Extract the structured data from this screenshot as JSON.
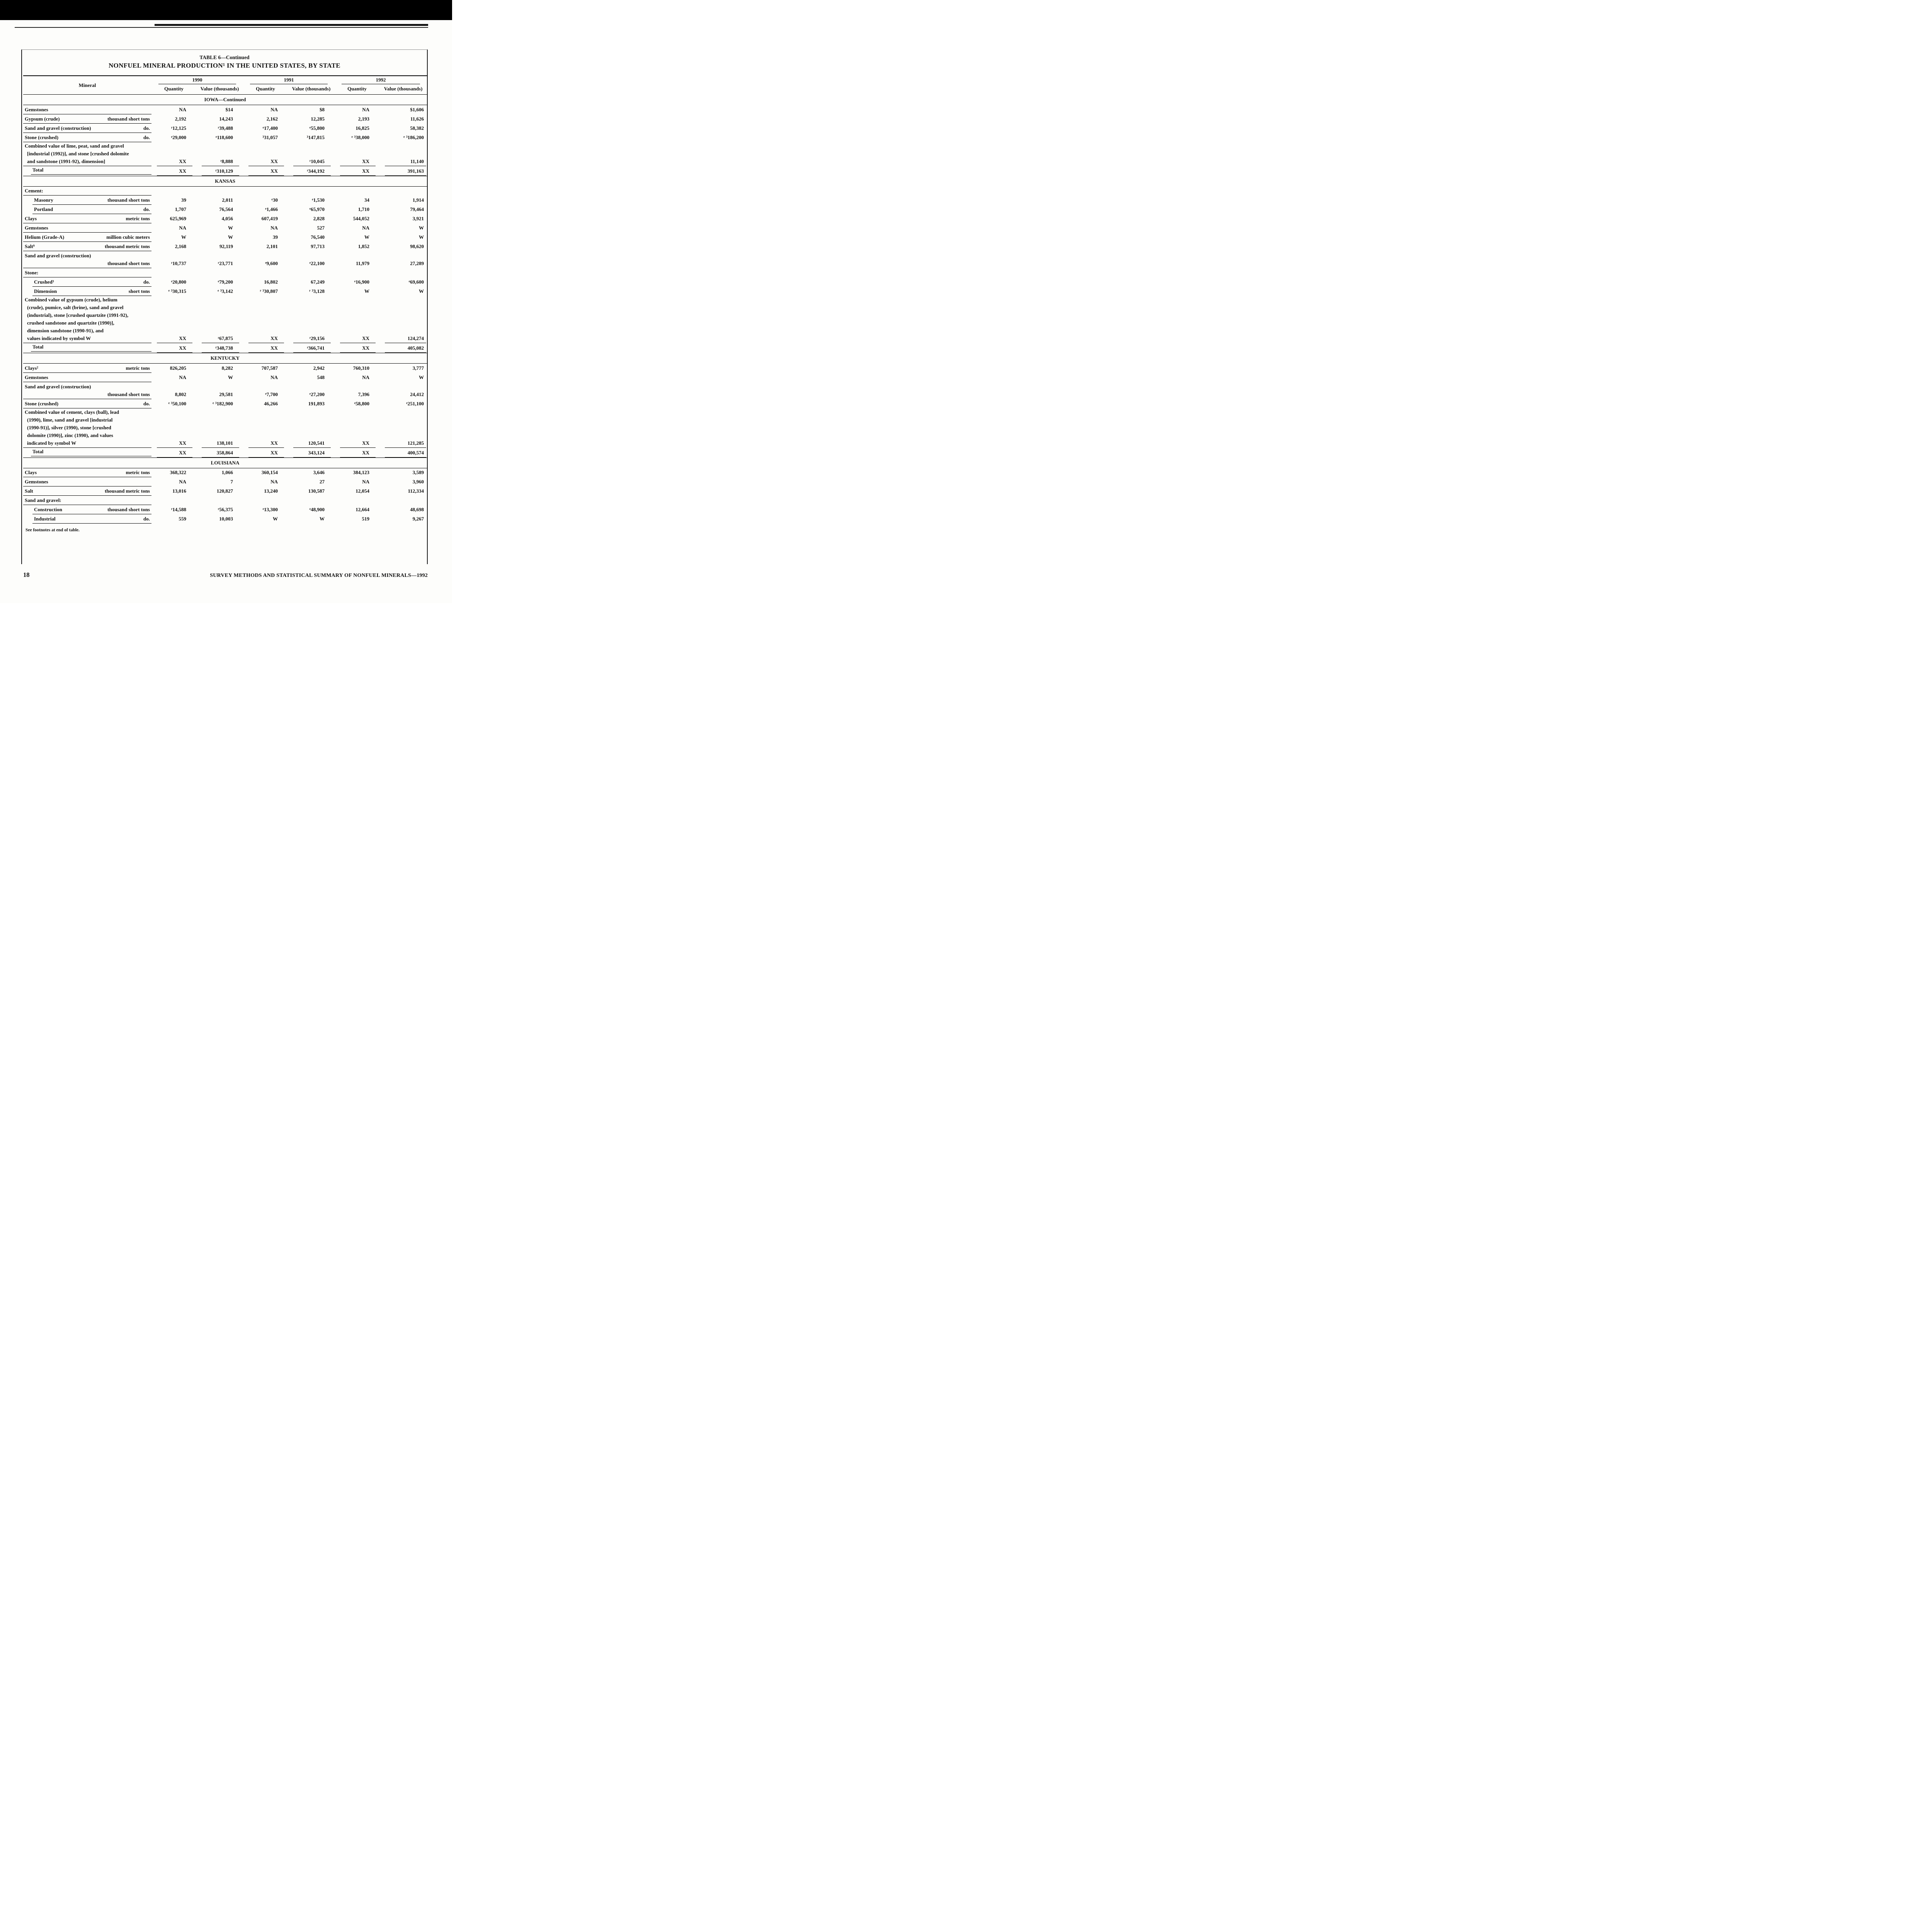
{
  "colors": {
    "ink": "#111111",
    "paper": "#fdfdfb",
    "bar": "#000000"
  },
  "doc": {
    "page_number": "18",
    "footer_text": "SURVEY METHODS AND STATISTICAL SUMMARY OF NONFUEL MINERALS—1992"
  },
  "table": {
    "title_line1": "TABLE 6—Continued",
    "title_line2": "NONFUEL MINERAL PRODUCTION¹ IN THE UNITED STATES, BY STATE",
    "mineral_header": "Mineral",
    "years": [
      "1990",
      "1991",
      "1992"
    ],
    "quantity_header": "Quantity",
    "value_header": "Value (thousands)",
    "rows": [
      {
        "t": "sec",
        "label": "IOWA—Continued"
      },
      {
        "t": "r",
        "label": "Gemstones",
        "unit": "",
        "v": [
          "NA",
          "$14",
          "NA",
          "$8",
          "NA",
          "$1,606"
        ]
      },
      {
        "t": "r",
        "label": "Gypsum (crude)",
        "unit": "thousand short tons",
        "v": [
          "2,192",
          "14,243",
          "2,162",
          "12,285",
          "2,193",
          "11,626"
        ]
      },
      {
        "t": "r",
        "label": "Sand and gravel (construction)",
        "unit": "do.",
        "v": [
          "ʳ12,125",
          "ʳ39,488",
          "ᵉ17,400",
          "ᵉ55,800",
          "16,825",
          "58,382"
        ]
      },
      {
        "t": "r",
        "label": "Stone (crushed)",
        "unit": "do.",
        "v": [
          "ᵉ29,000",
          "ᵉ118,600",
          "³31,057",
          "³147,815",
          "ᵉ ³38,000",
          "ᵉ ³186,200"
        ]
      },
      {
        "t": "ml",
        "lines": [
          "Combined value of lime, peat, sand and gravel",
          "[industrial (1992)], and stone [crushed dolomite",
          "and sandstone (1991-92), dimension]"
        ],
        "v": [
          "XX",
          "ʳ8,888",
          "XX",
          "ʳ10,045",
          "XX",
          "11,140"
        ]
      },
      {
        "t": "total",
        "label": "Total",
        "v": [
          "XX",
          "ʳ310,129",
          "XX",
          "ʳ344,192",
          "XX",
          "391,163"
        ]
      },
      {
        "t": "sec",
        "label": "KANSAS"
      },
      {
        "t": "g",
        "label": "Cement:"
      },
      {
        "t": "r",
        "label": "Masonry",
        "unit": "thousand short tons",
        "ind": 1,
        "v": [
          "39",
          "2,011",
          "ᵉ30",
          "ᵉ1,530",
          "34",
          "1,914"
        ]
      },
      {
        "t": "r",
        "label": "Portland",
        "unit": "do.",
        "ind": 1,
        "v": [
          "1,707",
          "76,564",
          "ᵉ1,466",
          "ᵉ65,970",
          "1,710",
          "79,464"
        ]
      },
      {
        "t": "r",
        "label": "Clays",
        "unit": "metric tons",
        "v": [
          "625,969",
          "4,056",
          "607,419",
          "2,828",
          "544,052",
          "3,921"
        ]
      },
      {
        "t": "r",
        "label": "Gemstones",
        "unit": "",
        "v": [
          "NA",
          "W",
          "NA",
          "527",
          "NA",
          "W"
        ]
      },
      {
        "t": "r",
        "label": "Helium (Grade-A)",
        "unit": "million cubic meters",
        "v": [
          "W",
          "W",
          "39",
          "76,540",
          "W",
          "W"
        ]
      },
      {
        "t": "r",
        "label": "Salt⁹",
        "unit": "thousand metric tons",
        "v": [
          "2,168",
          "92,119",
          "2,101",
          "97,713",
          "1,852",
          "98,620"
        ]
      },
      {
        "t": "r2",
        "label": "Sand and gravel (construction)",
        "unit": "thousand short tons",
        "v": [
          "ʳ10,737",
          "ʳ23,771",
          "ᵉ9,600",
          "ᵉ22,100",
          "11,979",
          "27,289"
        ]
      },
      {
        "t": "g",
        "label": "Stone:"
      },
      {
        "t": "r",
        "label": "Crushed³",
        "unit": "do.",
        "ind": 1,
        "v": [
          "ᵉ20,800",
          "ᵉ79,200",
          "16,802",
          "67,249",
          "ᵉ16,900",
          "ᵉ69,600"
        ]
      },
      {
        "t": "r",
        "label": "Dimension",
        "unit": "short tons",
        "ind": 1,
        "v": [
          "ᵉ ³30,315",
          "ᵉ ³3,142",
          "ʳ ³30,807",
          "ʳ ³3,128",
          "W",
          "W"
        ]
      },
      {
        "t": "ml",
        "lines": [
          "Combined value of gypsum (crude), helium",
          "(crude), pumice, salt (brine), sand and gravel",
          "(industrial), stone [crushed quartzite (1991-92),",
          "crushed sandstone and quartzite (1990)],",
          "dimension sandstone (1990-91), and",
          "values indicated by symbol W"
        ],
        "v": [
          "XX",
          "ʳ67,875",
          "XX",
          "ʳ29,156",
          "XX",
          "124,274"
        ]
      },
      {
        "t": "total",
        "label": "Total",
        "v": [
          "XX",
          "ʳ348,738",
          "XX",
          "ʳ366,741",
          "XX",
          "405,082"
        ]
      },
      {
        "t": "sec",
        "label": "KENTUCKY"
      },
      {
        "t": "r",
        "label": "Clays²",
        "unit": "metric tons",
        "v": [
          "826,205",
          "8,282",
          "707,587",
          "2,942",
          "760,310",
          "3,777"
        ]
      },
      {
        "t": "r",
        "label": "Gemstones",
        "unit": "",
        "v": [
          "NA",
          "W",
          "NA",
          "548",
          "NA",
          "W"
        ]
      },
      {
        "t": "r2",
        "label": "Sand and gravel (construction)",
        "unit": "thousand short tons",
        "v": [
          "8,802",
          "29,581",
          "ᵉ7,700",
          "ᵉ27,200",
          "7,396",
          "24,412"
        ]
      },
      {
        "t": "r",
        "label": "Stone (crushed)",
        "unit": "do.",
        "v": [
          "ᵉ ³50,100",
          "ᵉ ³182,900",
          "46,266",
          "191,893",
          "ᵉ58,800",
          "ᵉ251,100"
        ]
      },
      {
        "t": "ml",
        "lines": [
          "Combined value of cement, clays (ball), lead",
          "(1990), lime, sand and gravel [industrial",
          "(1990-91)], silver (1990), stone [crushed",
          "dolomite (1990)], zinc (1990), and values",
          "indicated by symbol W"
        ],
        "v": [
          "XX",
          "138,101",
          "XX",
          "120,541",
          "XX",
          "121,285"
        ]
      },
      {
        "t": "total",
        "label": "Total",
        "v": [
          "XX",
          "358,864",
          "XX",
          "343,124",
          "XX",
          "400,574"
        ]
      },
      {
        "t": "sec",
        "label": "LOUISIANA"
      },
      {
        "t": "r",
        "label": "Clays",
        "unit": "metric tons",
        "v": [
          "368,322",
          "1,066",
          "360,154",
          "3,646",
          "384,123",
          "3,589"
        ]
      },
      {
        "t": "r",
        "label": "Gemstones",
        "unit": "",
        "v": [
          "NA",
          "7",
          "NA",
          "27",
          "NA",
          "3,960"
        ]
      },
      {
        "t": "r",
        "label": "Salt",
        "unit": "thousand metric tons",
        "v": [
          "13,016",
          "120,827",
          "13,240",
          "130,587",
          "12,054",
          "112,334"
        ]
      },
      {
        "t": "g",
        "label": "Sand and gravel:"
      },
      {
        "t": "r",
        "label": "Construction",
        "unit": "thousand short tons",
        "ind": 1,
        "v": [
          "ʳ14,588",
          "ʳ56,375",
          "ᵉ13,300",
          "ᵉ48,900",
          "12,664",
          "48,698"
        ]
      },
      {
        "t": "r",
        "label": "Industrial",
        "unit": "do.",
        "ind": 1,
        "v": [
          "559",
          "10,003",
          "W",
          "W",
          "519",
          "9,267"
        ]
      },
      {
        "t": "note",
        "label": "See footnotes at end of table."
      }
    ]
  }
}
